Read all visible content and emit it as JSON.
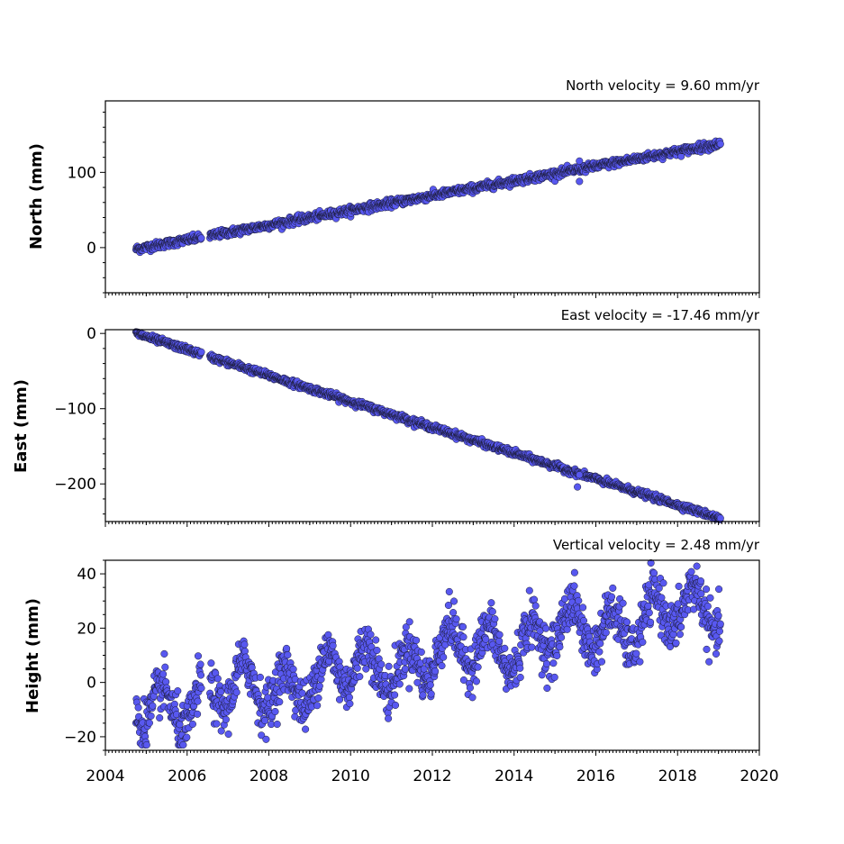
{
  "chart_data": [
    {
      "type": "scatter",
      "panel": "north",
      "title": "North velocity = 9.60 mm/yr",
      "ylabel": "North (mm)",
      "xlim": [
        2004,
        2020
      ],
      "ylim": [
        -60,
        195
      ],
      "yticks": [
        0,
        100
      ],
      "ytick_labels": [
        "0",
        "100"
      ],
      "trend": {
        "start": [
          2004.75,
          -2
        ],
        "end": [
          2019.05,
          138
        ]
      },
      "offset_points": [
        [
          2015.6,
          115
        ],
        [
          2015.6,
          88
        ]
      ],
      "noise_mm": 2.5,
      "gap": [
        2006.35,
        2006.55
      ]
    },
    {
      "type": "scatter",
      "panel": "east",
      "title": "East velocity = -17.46 mm/yr",
      "ylabel": "East (mm)",
      "xlim": [
        2004,
        2020
      ],
      "ylim": [
        -250,
        5
      ],
      "yticks": [
        0,
        -100,
        -200
      ],
      "ytick_labels": [
        "0",
        "−100",
        "−200"
      ],
      "trend": {
        "start": [
          2004.75,
          0
        ],
        "end": [
          2019.05,
          -246
        ]
      },
      "offset_points": [
        [
          2015.55,
          -204
        ],
        [
          2015.6,
          -188
        ]
      ],
      "noise_mm": 2.0,
      "gap": [
        2006.35,
        2006.55
      ]
    },
    {
      "type": "scatter",
      "panel": "height",
      "title": "Vertical velocity = 2.48 mm/yr",
      "ylabel": "Height (mm)",
      "xlim": [
        2004,
        2020
      ],
      "ylim": [
        -25,
        45
      ],
      "yticks": [
        -20,
        0,
        20,
        40
      ],
      "ytick_labels": [
        "−20",
        "0",
        "20",
        "40"
      ],
      "trend": {
        "start": [
          2004.75,
          -10
        ],
        "end": [
          2019.05,
          28
        ]
      },
      "seasonal_amplitude_mm": 8,
      "noise_mm": 4.5,
      "gap": [
        2006.35,
        2006.55
      ]
    }
  ],
  "x_axis": {
    "ticks": [
      2004,
      2006,
      2008,
      2010,
      2012,
      2014,
      2016,
      2018,
      2020
    ],
    "tick_labels": [
      "2004",
      "2006",
      "2008",
      "2010",
      "2012",
      "2014",
      "2016",
      "2018",
      "2020"
    ],
    "minor_ticks_per_year": 12
  },
  "colors": {
    "marker_fill": "#5858f0",
    "marker_edge": "#1a1a33"
  }
}
